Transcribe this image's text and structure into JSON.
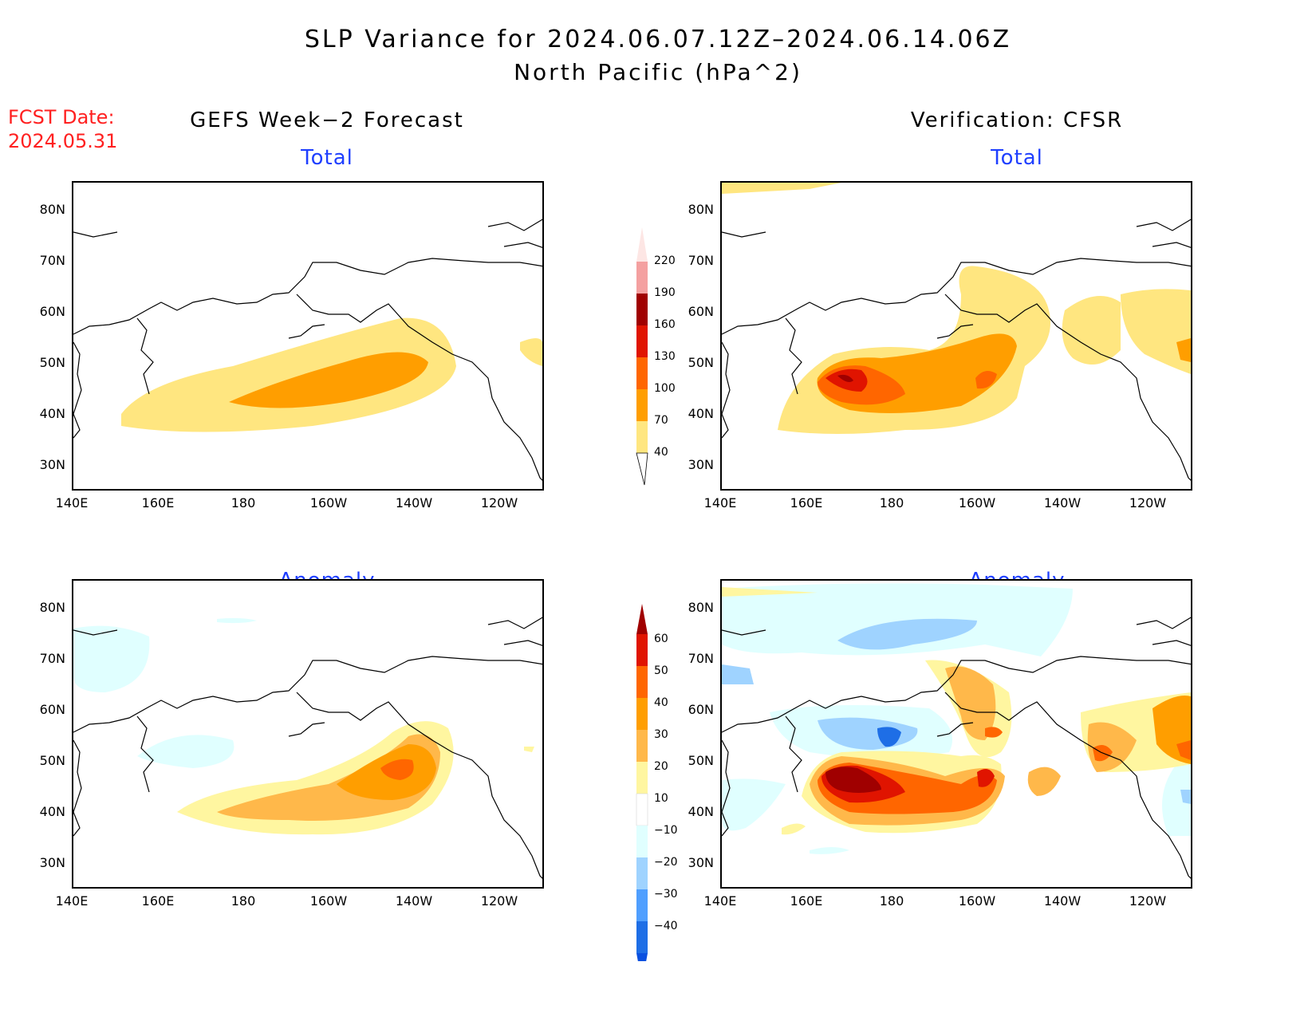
{
  "header": {
    "title_line1": "SLP Variance for 2024.06.07.12Z–2024.06.14.06Z",
    "title_line2": "North Pacific (hPa^2)"
  },
  "fcst": {
    "label": "FCST Date:",
    "date": "2024.05.31"
  },
  "columns": {
    "left": "GEFS Week−2 Forecast",
    "right": "Verification: CFSR"
  },
  "panels": {
    "top_left_title": "Total",
    "top_right_title": "Total",
    "bottom_left_title": "Anomaly",
    "bottom_right_title": "Anomaly"
  },
  "axes": {
    "lat_labels": [
      "80N",
      "70N",
      "60N",
      "50N",
      "40N",
      "30N"
    ],
    "lon_labels": [
      "140E",
      "160E",
      "180",
      "160W",
      "140W",
      "120W"
    ]
  },
  "colorbar_total": {
    "levels": [
      "220",
      "190",
      "160",
      "130",
      "100",
      "70",
      "40"
    ],
    "colors": [
      "#fde6e4",
      "#f4a0a0",
      "#a00000",
      "#e01400",
      "#ff6600",
      "#ff9e00",
      "#ffe680"
    ]
  },
  "colorbar_anom": {
    "levels": [
      "60",
      "50",
      "40",
      "30",
      "20",
      "10",
      "−10",
      "−20",
      "−30",
      "−40"
    ],
    "colors": [
      "#a00000",
      "#e01400",
      "#ff6600",
      "#ff9e00",
      "#ffb84a",
      "#fff6a0",
      "#ffffff",
      "#e0ffff",
      "#9fd3ff",
      "#4f9fff",
      "#1e6ee6",
      "#0a50e0"
    ]
  }
}
